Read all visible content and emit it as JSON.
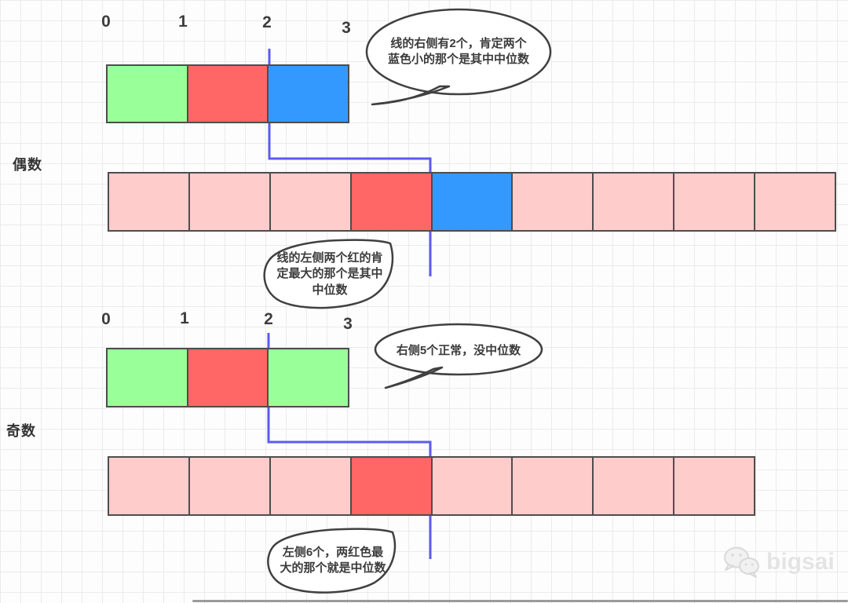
{
  "colors": {
    "green": "#99FF99",
    "red": "#FF6666",
    "blue": "#3399FF",
    "pink": "#FFCCCC",
    "line": "#5B5BF0",
    "border": "#4D4D4D"
  },
  "sections": {
    "even": {
      "label": "偶数",
      "ticks": [
        "0",
        "1",
        "2",
        "3"
      ],
      "small_array": [
        "green",
        "red",
        "blue"
      ],
      "big_array": [
        "pink",
        "pink",
        "pink",
        "red",
        "blue",
        "pink",
        "pink",
        "pink",
        "pink"
      ],
      "bubble_right": "线的右侧有2个，肯定两个\n蓝色小的那个是其中中位数",
      "bubble_left": "线的左侧两个红的肯\n定最大的那个是其中\n中位数"
    },
    "odd": {
      "label": "奇数",
      "ticks": [
        "0",
        "1",
        "2",
        "3"
      ],
      "small_array": [
        "green",
        "red",
        "green"
      ],
      "big_array": [
        "pink",
        "pink",
        "pink",
        "red",
        "pink",
        "pink",
        "pink",
        "pink"
      ],
      "bubble_right": "右侧5个正常，没中位数",
      "bubble_left": "左侧6个，两红色最\n大的那个就是中位数"
    }
  },
  "watermark": {
    "text": "bigsai",
    "icon": "wechat-icon"
  }
}
